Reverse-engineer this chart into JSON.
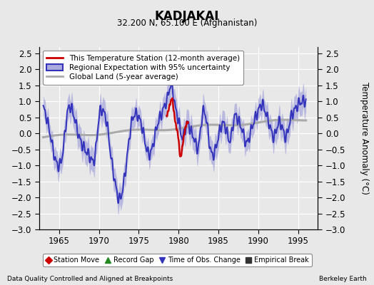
{
  "title": "KADJAKAI",
  "subtitle": "32.200 N, 65.100 E (Afghanistan)",
  "ylabel": "Temperature Anomaly (°C)",
  "xlabel_left": "Data Quality Controlled and Aligned at Breakpoints",
  "xlabel_right": "Berkeley Earth",
  "ylim": [
    -3,
    2.7
  ],
  "xlim": [
    1962.5,
    1997.5
  ],
  "yticks": [
    -3,
    -2.5,
    -2,
    -1.5,
    -1,
    -0.5,
    0,
    0.5,
    1,
    1.5,
    2,
    2.5
  ],
  "xticks": [
    1965,
    1970,
    1975,
    1980,
    1985,
    1990,
    1995
  ],
  "bg_color": "#e8e8e8",
  "plot_bg_color": "#e8e8e8",
  "regional_color": "#3333bb",
  "regional_fill_color": "#aaaadd",
  "station_color": "#cc0000",
  "global_color": "#aaaaaa",
  "legend1_entries": [
    {
      "label": "This Temperature Station (12-month average)",
      "color": "#cc0000",
      "lw": 2
    },
    {
      "label": "Regional Expectation with 95% uncertainty",
      "color": "#3333bb",
      "lw": 2
    },
    {
      "label": "Global Land (5-year average)",
      "color": "#aaaaaa",
      "lw": 2
    }
  ],
  "legend2_entries": [
    {
      "label": "Station Move",
      "marker": "D",
      "color": "#cc0000"
    },
    {
      "label": "Record Gap",
      "marker": "^",
      "color": "#228822"
    },
    {
      "label": "Time of Obs. Change",
      "marker": "v",
      "color": "#3333bb"
    },
    {
      "label": "Empirical Break",
      "marker": "s",
      "color": "#333333"
    }
  ]
}
